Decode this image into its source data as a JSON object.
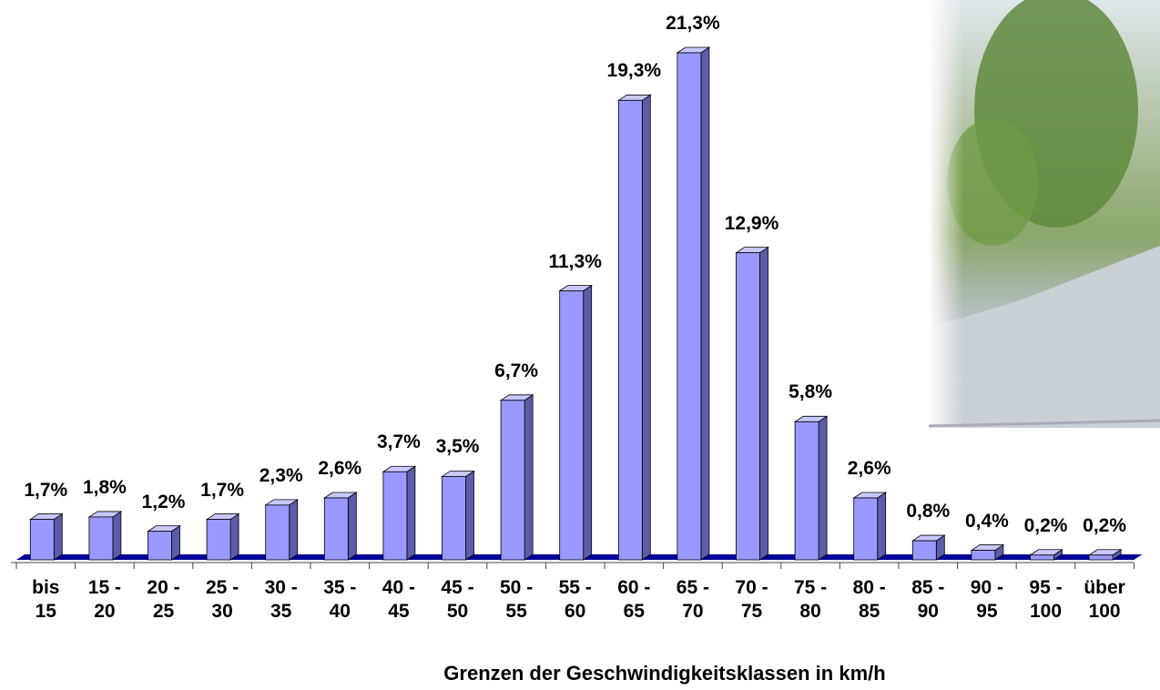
{
  "chart_data": {
    "type": "bar3d",
    "x_label": "Grenzen der Geschwindigkeitsklassen in km/h",
    "categories": [
      "bis 15",
      "15 - 20",
      "20 - 25",
      "25 - 30",
      "30 - 35",
      "35 - 40",
      "40 - 45",
      "45 - 50",
      "50 - 55",
      "55 - 60",
      "60 - 65",
      "65 - 70",
      "70 - 75",
      "75 - 80",
      "80 - 85",
      "85 - 90",
      "90 - 95",
      "95 - 100",
      "über 100"
    ],
    "values": [
      1.7,
      1.8,
      1.2,
      1.7,
      2.3,
      2.6,
      3.7,
      3.5,
      6.7,
      11.3,
      19.3,
      21.3,
      12.9,
      5.8,
      2.6,
      0.8,
      0.4,
      0.2,
      0.2
    ],
    "value_labels": [
      "1,7%",
      "1,8%",
      "1,2%",
      "1,7%",
      "2,3%",
      "2,6%",
      "3,7%",
      "3,5%",
      "6,7%",
      "11,3%",
      "19,3%",
      "21,3%",
      "12,9%",
      "5,8%",
      "2,6%",
      "0,8%",
      "0,4%",
      "0,2%",
      "0,2%"
    ],
    "color": "#9999ff"
  }
}
